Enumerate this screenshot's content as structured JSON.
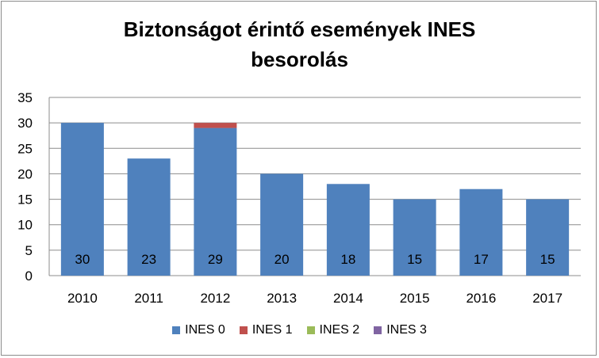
{
  "chart_data": {
    "type": "bar",
    "stacked": true,
    "title_line1": "Biztonságot érintő események INES",
    "title_line2": "besorolás",
    "categories": [
      "2010",
      "2011",
      "2012",
      "2013",
      "2014",
      "2015",
      "2016",
      "2017"
    ],
    "series": [
      {
        "name": "INES 0",
        "color": "#4f81bd",
        "values": [
          30,
          23,
          29,
          20,
          18,
          15,
          17,
          15
        ]
      },
      {
        "name": "INES 1",
        "color": "#c0504d",
        "values": [
          0,
          0,
          1,
          0,
          0,
          0,
          0,
          0
        ]
      },
      {
        "name": "INES 2",
        "color": "#9bbb59",
        "values": [
          0,
          0,
          0,
          0,
          0,
          0,
          0,
          0
        ]
      },
      {
        "name": "INES 3",
        "color": "#8064a2",
        "values": [
          0,
          0,
          0,
          0,
          0,
          0,
          0,
          0
        ]
      }
    ],
    "data_labels": [
      "30",
      "23",
      "29",
      "20",
      "18",
      "15",
      "17",
      "15"
    ],
    "ylim": [
      0,
      35
    ],
    "yticks": [
      0,
      5,
      10,
      15,
      20,
      25,
      30,
      35
    ],
    "grid": true,
    "legend_position": "bottom"
  }
}
